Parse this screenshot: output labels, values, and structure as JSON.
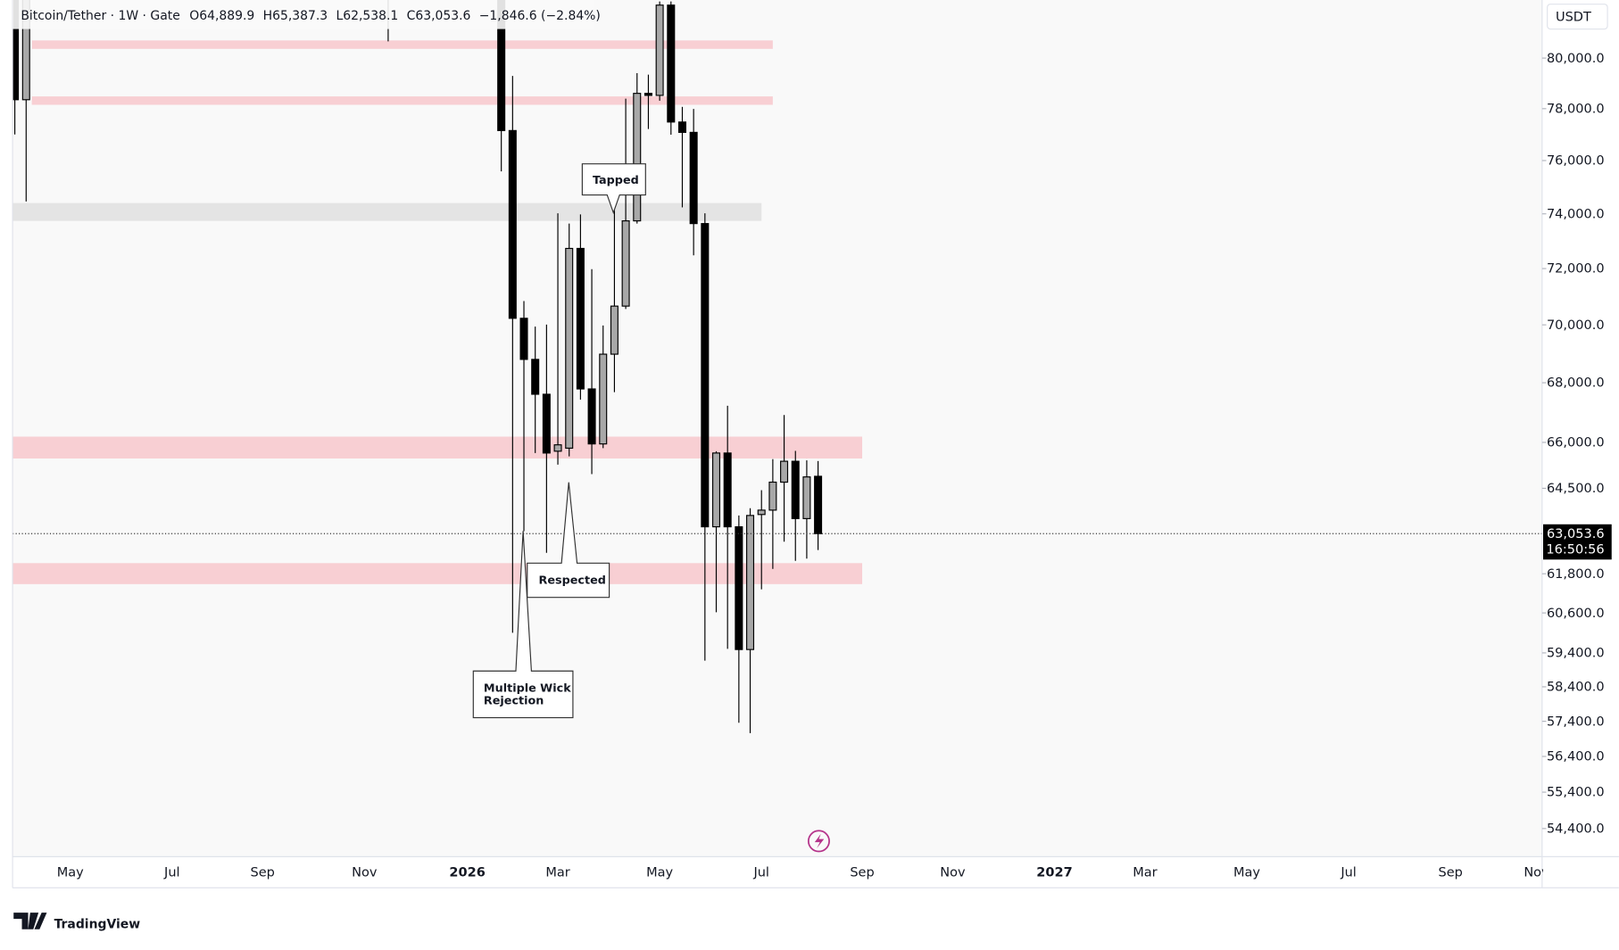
{
  "header": {
    "symbol": "Bitcoin/Tether · 1W · Gate",
    "open": "O64,889.9",
    "high": "H65,387.3",
    "low": "L62,538.1",
    "close": "C63,053.6",
    "change": "−1,846.6 (−2.84%)"
  },
  "chart_data": {
    "type": "candlestick",
    "log_scale": true,
    "up_color": "#a8a8a8",
    "down_color": "#000000",
    "x": [
      0,
      1,
      33,
      43,
      44,
      45,
      46,
      47,
      48,
      49,
      50,
      51,
      52,
      53,
      54,
      55,
      56,
      57,
      58,
      59,
      60,
      61,
      62,
      63,
      64,
      65,
      66,
      67,
      68,
      69,
      70,
      71
    ],
    "open": [
      84000,
      78350,
      88000,
      84000,
      77150,
      70230,
      68800,
      67610,
      65710,
      65810,
      72730,
      67790,
      65950,
      68980,
      70660,
      73740,
      78600,
      78520,
      82150,
      77480,
      77080,
      73640,
      63270,
      65650,
      63270,
      59500,
      63660,
      63800,
      64700,
      65380,
      63530,
      64889.9
    ],
    "high": [
      86000,
      86000,
      90000,
      86000,
      79290,
      70840,
      69940,
      70010,
      74020,
      73640,
      73980,
      71980,
      69980,
      74240,
      78390,
      79400,
      79340,
      82300,
      82300,
      78070,
      77990,
      74020,
      65710,
      67220,
      63630,
      63860,
      64440,
      65450,
      66910,
      65720,
      65410,
      65387.3
    ],
    "low": [
      77000,
      74460,
      80670,
      75590,
      60000,
      63130,
      65650,
      62450,
      65270,
      65540,
      67430,
      64960,
      65810,
      67680,
      70560,
      73640,
      77210,
      78310,
      76990,
      74240,
      72480,
      59170,
      60620,
      59520,
      57360,
      57060,
      61320,
      61950,
      62800,
      62200,
      62270,
      62538.1
    ],
    "close": [
      78350,
      85000,
      87000,
      77150,
      70230,
      68800,
      67610,
      65650,
      65920,
      72730,
      67790,
      65950,
      68980,
      70660,
      73740,
      78600,
      78520,
      82150,
      77480,
      77080,
      73640,
      63270,
      65650,
      63270,
      59500,
      63630,
      63800,
      64700,
      65380,
      63530,
      64870,
      63053.6
    ],
    "xlim": [
      -0.2,
      135
    ],
    "xticks": [
      {
        "value": 4.9,
        "label": "May"
      },
      {
        "value": 13.9,
        "label": "Jul"
      },
      {
        "value": 21.9,
        "label": "Sep"
      },
      {
        "value": 30.9,
        "label": "Nov"
      },
      {
        "value": 40,
        "label": "2026"
      },
      {
        "value": 48,
        "label": "Mar"
      },
      {
        "value": 57,
        "label": "May"
      },
      {
        "value": 66,
        "label": "Jul"
      },
      {
        "value": 74.9,
        "label": "Sep"
      },
      {
        "value": 82.9,
        "label": "Nov"
      },
      {
        "value": 91.9,
        "label": "2027"
      },
      {
        "value": 99.9,
        "label": "Mar"
      },
      {
        "value": 108.9,
        "label": "May"
      },
      {
        "value": 117.9,
        "label": "Jul"
      },
      {
        "value": 126.9,
        "label": "Sep"
      },
      {
        "value": 134.5,
        "label": "Nov"
      }
    ],
    "ylim": [
      53640,
      82360
    ],
    "yticks": [
      {
        "value": 80000,
        "label": "80,000.0"
      },
      {
        "value": 78000,
        "label": "78,000.0"
      },
      {
        "value": 76000,
        "label": "76,000.0"
      },
      {
        "value": 74000,
        "label": "74,000.0"
      },
      {
        "value": 72000,
        "label": "72,000.0"
      },
      {
        "value": 70000,
        "label": "70,000.0"
      },
      {
        "value": 68000,
        "label": "68,000.0"
      },
      {
        "value": 66000,
        "label": "66,000.0"
      },
      {
        "value": 64500,
        "label": "64,500.0"
      },
      {
        "value": 61800,
        "label": "61,800.0"
      },
      {
        "value": 60600,
        "label": "60,600.0"
      },
      {
        "value": 59400,
        "label": "59,400.0"
      },
      {
        "value": 58400,
        "label": "58,400.0"
      },
      {
        "value": 57400,
        "label": "57,400.0"
      },
      {
        "value": 56400,
        "label": "56,400.0"
      },
      {
        "value": 55400,
        "label": "55,400.0"
      },
      {
        "value": 54400,
        "label": "54,400.0"
      }
    ],
    "current_price": {
      "value": 63053.6,
      "label": "63,053.6",
      "countdown": "16:50:56"
    },
    "currency": "USDT",
    "zones": [
      {
        "x": [
          1.5,
          67
        ],
        "y": [
          80370,
          80710
        ],
        "color": "#f8cfd3"
      },
      {
        "x": [
          1.5,
          67
        ],
        "y": [
          78150,
          78480
        ],
        "color": "#f8cfd3"
      },
      {
        "x": [
          -0.2,
          66
        ],
        "y": [
          73740,
          74400
        ],
        "color": "#e4e4e4"
      },
      {
        "x": [
          -0.2,
          74.9
        ],
        "y": [
          65470,
          66190
        ],
        "color": "#f8cfd3"
      },
      {
        "x": [
          -0.2,
          74.9
        ],
        "y": [
          61480,
          62130
        ],
        "color": "#f8cfd3"
      }
    ],
    "annotations": {
      "tapped": "Tapped",
      "respected": "Respected",
      "wick": [
        "Multiple Wick",
        "Rejection"
      ]
    }
  },
  "footer": {
    "logo": "TradingView"
  }
}
